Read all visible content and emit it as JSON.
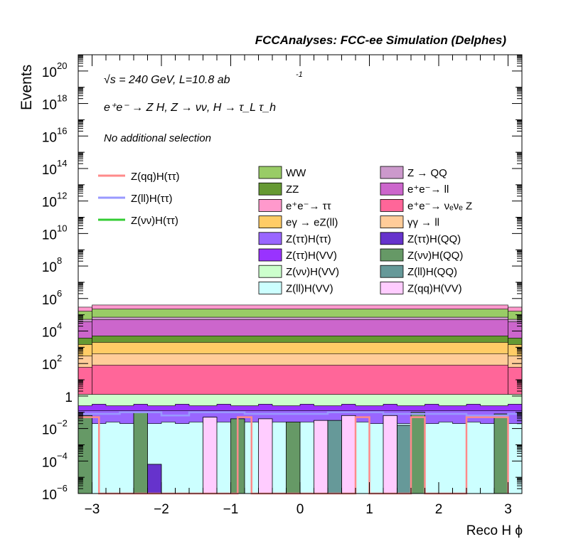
{
  "chart_data": {
    "type": "bar",
    "title": "FCCAnalyses: FCC-ee Simulation (Delphes)",
    "xlabel": "Reco H ϕ",
    "ylabel": "Events",
    "xlim": [
      -3.2,
      3.2
    ],
    "ylim": [
      1e-06,
      1e+21
    ],
    "yscale": "log",
    "xticks": [
      -3,
      -2,
      -1,
      0,
      1,
      2,
      3
    ],
    "xtick_labels": [
      "−3",
      "−2",
      "−1",
      "0",
      "1",
      "2",
      "3"
    ],
    "yticks": [
      {
        "exp": -6,
        "label": "10",
        "sup": "−6"
      },
      {
        "exp": -4,
        "label": "10",
        "sup": "−4"
      },
      {
        "exp": -2,
        "label": "10",
        "sup": "−2"
      },
      {
        "exp": 0,
        "label": "1",
        "sup": ""
      },
      {
        "exp": 2,
        "label": "10",
        "sup": "2"
      },
      {
        "exp": 4,
        "label": "10",
        "sup": "4"
      },
      {
        "exp": 6,
        "label": "10",
        "sup": "6"
      },
      {
        "exp": 8,
        "label": "10",
        "sup": "8"
      },
      {
        "exp": 10,
        "label": "10",
        "sup": "10"
      },
      {
        "exp": 12,
        "label": "10",
        "sup": "12"
      },
      {
        "exp": 14,
        "label": "10",
        "sup": "14"
      },
      {
        "exp": 16,
        "label": "10",
        "sup": "16"
      },
      {
        "exp": 18,
        "label": "10",
        "sup": "18"
      },
      {
        "exp": 20,
        "label": "10",
        "sup": "20"
      }
    ],
    "annotations": {
      "energy_line": "√s = 240 GeV, L=10.8 ab",
      "energy_sup": "-1",
      "process_line": "e⁺e⁻ → Z H, Z → νν, H → τ_L τ_h",
      "selection": "No additional selection"
    },
    "legend_position": "top",
    "bins": 32,
    "bin_edges": [
      -3.2,
      3.2
    ],
    "stack_boundaries_log10": [
      {
        "name": "Z(ll)H(VV)",
        "color": "#ccffff",
        "top": [
          -1.6,
          -1.7,
          -1.6,
          -1.7,
          -1.6,
          -1.7,
          -1.6,
          -1.7,
          -1.6,
          -1.7,
          -1.6,
          -1.7,
          -1.6,
          -1.7,
          -1.6,
          -1.7,
          -1.6,
          -1.7,
          -1.6,
          -1.7,
          -1.6,
          -1.7,
          -1.6,
          -1.7,
          -1.6,
          -1.7,
          -1.6,
          -1.7,
          -1.6,
          -1.7,
          -1.6,
          -1.7
        ]
      },
      {
        "name": "Z(νν)H(VV)",
        "color": "#ccffcc",
        "top": [
          0.1,
          0.1,
          0.1,
          0.1,
          0.1,
          0.1,
          0.1,
          0.1,
          0.1,
          0.1,
          0.1,
          0.1,
          0.1,
          0.1,
          0.1,
          0.1,
          0.1,
          0.1,
          0.1,
          0.1,
          0.1,
          0.1,
          0.1,
          0.1,
          0.1,
          0.1,
          0.1,
          0.1,
          0.1,
          0.1,
          0.1,
          0.1
        ]
      },
      {
        "name": "Z(ττ)H(VV)",
        "color": "#9933ff",
        "top": [
          -0.6,
          -0.5,
          -0.6,
          -0.6,
          -0.5,
          -0.6,
          -0.6,
          -0.5,
          -0.6,
          -0.6,
          -0.5,
          -0.6,
          -0.6,
          -0.5,
          -0.6,
          -0.6,
          -0.5,
          -0.6,
          -0.6,
          -0.5,
          -0.6,
          -0.6,
          -0.5,
          -0.6,
          -0.6,
          -0.5,
          -0.6,
          -0.6,
          -0.5,
          -0.6,
          -0.6,
          -0.5
        ]
      },
      {
        "name": "Z(ττ)H(ττ)",
        "color": "#9966ff",
        "top": [
          -0.9,
          -0.9,
          -0.9,
          -0.9,
          -0.9,
          -0.9,
          -0.9,
          -0.9,
          -0.9,
          -0.9,
          -0.9,
          -0.9,
          -0.9,
          -0.9,
          -0.9,
          -0.9,
          -0.9,
          -0.9,
          -0.9,
          -0.9,
          -0.9,
          -0.9,
          -0.9,
          -0.9,
          -0.9,
          -0.9,
          -0.9,
          -0.9,
          -0.9,
          -0.9,
          -0.9,
          -0.9
        ]
      }
    ],
    "stack_layers": [
      {
        "name": "e⁺e⁻→ ν_e ν_e Z",
        "color": "#ff6699",
        "top_log10": 1.9
      },
      {
        "name": "γγ → ll",
        "color": "#ffcc99",
        "top_log10": 2.6
      },
      {
        "name": "eγ → eZ(ll)",
        "color": "#ffcc66",
        "top_log10": 3.3
      },
      {
        "name": "ZZ",
        "color": "#669933",
        "top_log10": 3.7
      },
      {
        "name": "e⁺e⁻→ ll",
        "color": "#cc66cc",
        "top_log10": 4.7
      },
      {
        "name": "Z → QQ",
        "color": "#cc99cc",
        "top_log10": 4.85
      },
      {
        "name": "WW",
        "color": "#99cc66",
        "top_log10": 5.35
      },
      {
        "name": "e⁺e⁻→ ττ",
        "color": "#ff99cc",
        "top_log10": 5.6
      }
    ],
    "sparse_bars": [
      {
        "name": "Z(νν)H(QQ)",
        "color": "#669966",
        "x0": -3.2,
        "x1": -3.0,
        "log10": -1.2
      },
      {
        "name": "Z(νν)H(QQ)",
        "color": "#669966",
        "x0": -2.4,
        "x1": -2.2,
        "log10": -1.0
      },
      {
        "name": "Z(ττ)H(QQ)",
        "color": "#6633cc",
        "x0": -2.2,
        "x1": -2.0,
        "log10": -4.2
      },
      {
        "name": "Z(qq)H(VV)",
        "color": "#ffccff",
        "x0": -1.4,
        "x1": -1.2,
        "log10": -1.3
      },
      {
        "name": "Z(νν)H(QQ)",
        "color": "#669966",
        "x0": -1.0,
        "x1": -0.8,
        "log10": -1.4
      },
      {
        "name": "Z(qq)H(VV)",
        "color": "#ffccff",
        "x0": -0.6,
        "x1": -0.4,
        "log10": -1.4
      },
      {
        "name": "Z(νν)H(QQ)",
        "color": "#669966",
        "x0": -0.2,
        "x1": 0.0,
        "log10": -1.6
      },
      {
        "name": "Z(qq)H(VV)",
        "color": "#ffccff",
        "x0": 0.2,
        "x1": 0.4,
        "log10": -1.5
      },
      {
        "name": "Z(ll)H(QQ)",
        "color": "#669999",
        "x0": 0.4,
        "x1": 0.6,
        "log10": -1.5
      },
      {
        "name": "Z(qq)H(VV)",
        "color": "#ffccff",
        "x0": 0.6,
        "x1": 0.8,
        "log10": -1.2
      },
      {
        "name": "Z(qq)H(VV)",
        "color": "#ffccff",
        "x0": 1.2,
        "x1": 1.4,
        "log10": -1.2
      },
      {
        "name": "Z(ll)H(QQ)",
        "color": "#669999",
        "x0": 1.4,
        "x1": 1.6,
        "log10": -1.8
      },
      {
        "name": "Z(νν)H(QQ)",
        "color": "#669966",
        "x0": 1.6,
        "x1": 1.8,
        "log10": -1.0
      },
      {
        "name": "Z(νν)H(QQ)",
        "color": "#669966",
        "x0": 2.8,
        "x1": 3.0,
        "log10": -1.1
      }
    ],
    "lines": [
      {
        "name": "Z(qq)H(ττ)",
        "color": "#ff8a8a",
        "points": [
          [
            -3.2,
            -1.3
          ],
          [
            -2.9,
            -1.3
          ],
          [
            -2.9,
            -6
          ],
          [
            -0.9,
            -6
          ],
          [
            -0.9,
            -1.3
          ],
          [
            -0.7,
            -1.3
          ],
          [
            -0.7,
            -6
          ],
          [
            0.8,
            -6
          ],
          [
            0.8,
            -1.3
          ],
          [
            1.0,
            -1.3
          ],
          [
            1.0,
            -6
          ],
          [
            1.6,
            -6
          ],
          [
            1.6,
            -1.3
          ],
          [
            1.8,
            -1.3
          ],
          [
            1.8,
            -6
          ],
          [
            2.4,
            -6
          ],
          [
            2.4,
            -1.3
          ],
          [
            3.0,
            -1.3
          ],
          [
            3.0,
            -6
          ]
        ]
      },
      {
        "name": "Z(ll)H(ττ)",
        "color": "#9999ff",
        "points": [
          [
            -3.2,
            -1.1
          ],
          [
            -2.6,
            -1.1
          ],
          [
            -2.6,
            -1.0
          ],
          [
            -2.0,
            -1.0
          ],
          [
            -2.0,
            -1.2
          ],
          [
            -1.6,
            -1.2
          ],
          [
            -1.6,
            -1.0
          ],
          [
            -0.8,
            -1.0
          ],
          [
            -0.8,
            -1.1
          ],
          [
            0.4,
            -1.1
          ],
          [
            0.4,
            -1.0
          ],
          [
            1.2,
            -1.0
          ],
          [
            1.2,
            -1.1
          ],
          [
            2.4,
            -1.1
          ],
          [
            2.4,
            -1.2
          ],
          [
            3.0,
            -1.2
          ],
          [
            3.0,
            -1.1
          ],
          [
            3.2,
            -1.1
          ]
        ]
      },
      {
        "name": "Z(νν)H(ττ)",
        "color": "#33cc33",
        "points": []
      }
    ],
    "legend_lines": [
      {
        "name": "Z(qq)H(ττ)",
        "color": "#ff8a8a"
      },
      {
        "name": "Z(ll)H(ττ)",
        "color": "#9999ff"
      },
      {
        "name": "Z(νν)H(ττ)",
        "color": "#33cc33"
      }
    ],
    "legend_boxes": [
      {
        "name": "WW",
        "color": "#99cc66"
      },
      {
        "name": "Z → QQ",
        "color": "#cc99cc"
      },
      {
        "name": "ZZ",
        "color": "#669933"
      },
      {
        "name": "e⁺e⁻→ ll",
        "color": "#cc66cc"
      },
      {
        "name": "e⁺e⁻→ ττ",
        "color": "#ff99cc"
      },
      {
        "name": "e⁺e⁻→ νₑνₑ Z",
        "color": "#ff6699"
      },
      {
        "name": "eγ → eZ(ll)",
        "color": "#ffcc66"
      },
      {
        "name": "γγ → ll",
        "color": "#ffcc99"
      },
      {
        "name": "Z(ττ)H(ττ)",
        "color": "#9966ff"
      },
      {
        "name": "Z(ττ)H(QQ)",
        "color": "#6633cc"
      },
      {
        "name": "Z(ττ)H(VV)",
        "color": "#9933ff"
      },
      {
        "name": "Z(νν)H(QQ)",
        "color": "#669966"
      },
      {
        "name": "Z(νν)H(VV)",
        "color": "#ccffcc"
      },
      {
        "name": "Z(ll)H(QQ)",
        "color": "#669999"
      },
      {
        "name": "Z(ll)H(VV)",
        "color": "#ccffff"
      },
      {
        "name": "Z(qq)H(VV)",
        "color": "#ffccff"
      }
    ]
  }
}
